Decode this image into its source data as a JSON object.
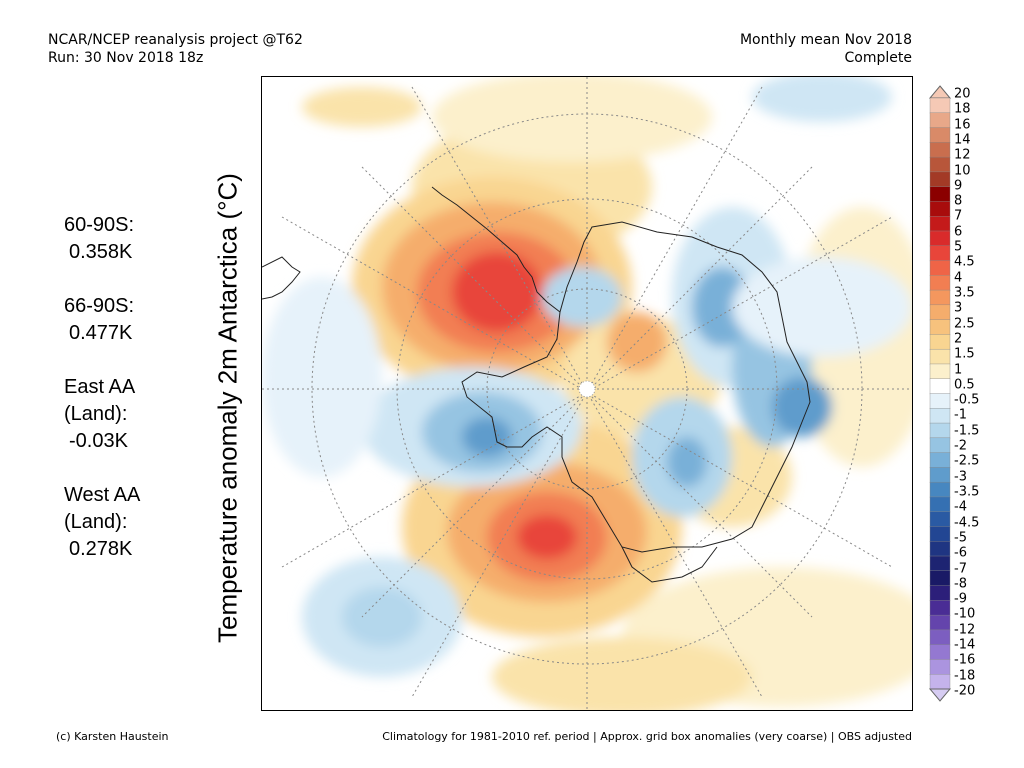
{
  "header": {
    "project": "NCAR/NCEP reanalysis project @T62",
    "run": "Run: 30 Nov 2018 18z",
    "period": "Monthly mean Nov 2018",
    "status": "Complete"
  },
  "stats": [
    {
      "label": "60-90S:",
      "value": "0.358K"
    },
    {
      "label": "66-90S:",
      "value": "0.477K"
    },
    {
      "label": "East AA\n(Land):",
      "value": "-0.03K"
    },
    {
      "label": "West AA\n(Land):",
      "value": "0.278K"
    }
  ],
  "map": {
    "ylabel": "Temperature anomaly 2m Antarctica (°C)",
    "projection": "south polar stereographic",
    "graticule": true
  },
  "colorbar": {
    "labels": [
      "20",
      "18",
      "16",
      "14",
      "12",
      "10",
      "9",
      "8",
      "7",
      "6",
      "5",
      "4.5",
      "4",
      "3.5",
      "3",
      "2.5",
      "2",
      "1.5",
      "1",
      "0.5",
      "-0.5",
      "-1",
      "-1.5",
      "-2",
      "-2.5",
      "-3",
      "-3.5",
      "-4",
      "-4.5",
      "-5",
      "-6",
      "-7",
      "-8",
      "-9",
      "-10",
      "-12",
      "-14",
      "-16",
      "-18",
      "-20"
    ],
    "colors": [
      "#f5c9b5",
      "#e8a889",
      "#d98a68",
      "#c96e4e",
      "#b8563a",
      "#a33a26",
      "#8b0000",
      "#a80c0c",
      "#c41a1a",
      "#d92b2b",
      "#e8453a",
      "#ef6447",
      "#f27e52",
      "#f4975e",
      "#f5ad6c",
      "#f7c27d",
      "#f9d591",
      "#fae3aa",
      "#fcf0cc",
      "#ffffff",
      "#e6f2fa",
      "#cfe6f4",
      "#b4d7ec",
      "#96c4e2",
      "#79b0d8",
      "#5f9ccc",
      "#4787c0",
      "#3570b2",
      "#2a5aa3",
      "#224693",
      "#1f3582",
      "#1d2472",
      "#1a1a66",
      "#2c1f7a",
      "#4a2d95",
      "#6444ac",
      "#7c5ec0",
      "#9478d1",
      "#ab94df",
      "#c5b3ec"
    ],
    "top_cap": "#f5c9b5",
    "bottom_cap": "#d6ccf2"
  },
  "footer": {
    "credit": "(c) Karsten Haustein",
    "note": "Climatology for 1981-2010 ref. period | Approx. grid box anomalies (very coarse) | OBS adjusted"
  }
}
